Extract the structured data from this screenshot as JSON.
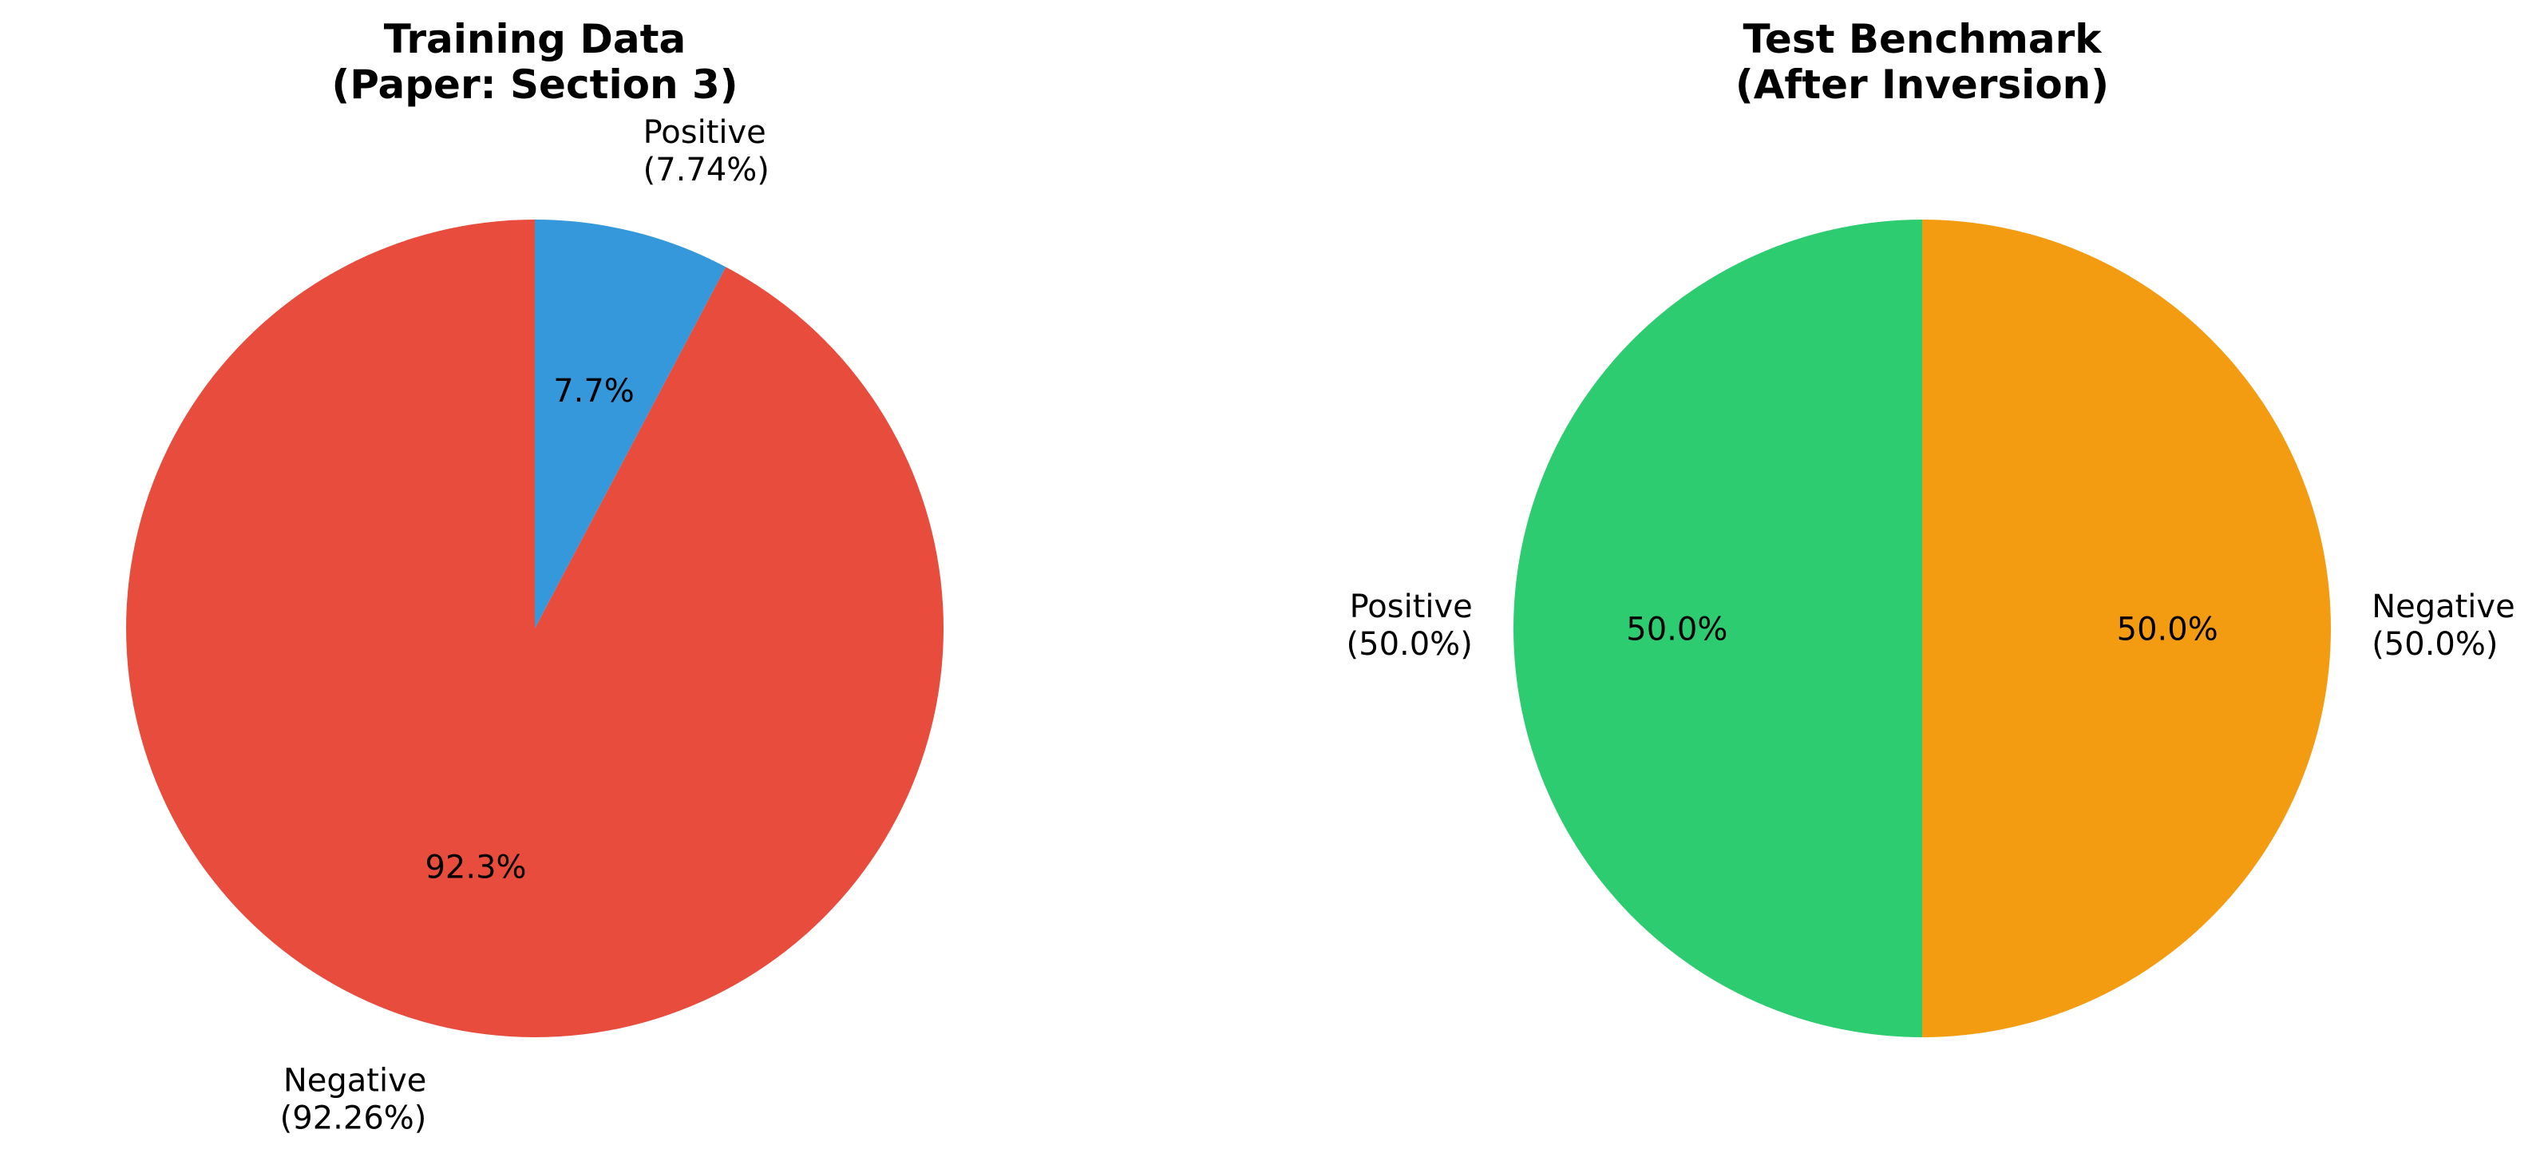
{
  "chart_data": [
    {
      "type": "pie",
      "title_lines": [
        "Training Data",
        "(Paper: Section 3)"
      ],
      "start_angle_deg": 90,
      "direction": "clockwise",
      "slices": [
        {
          "name": "Positive",
          "value": 7.74,
          "color": "#3498db",
          "label_lines": [
            "Positive",
            "(7.74%)"
          ],
          "pct_label": "7.7%"
        },
        {
          "name": "Negative",
          "value": 92.26,
          "color": "#e74c3c",
          "label_lines": [
            "Negative",
            "(92.26%)"
          ],
          "pct_label": "92.3%"
        }
      ]
    },
    {
      "type": "pie",
      "title_lines": [
        "Test Benchmark",
        "(After Inversion)"
      ],
      "start_angle_deg": 90,
      "direction": "counterclockwise",
      "slices": [
        {
          "name": "Positive",
          "value": 50.0,
          "color": "#2ecc71",
          "label_lines": [
            "Positive",
            "(50.0%)"
          ],
          "pct_label": "50.0%"
        },
        {
          "name": "Negative",
          "value": 50.0,
          "color": "#f39c12",
          "label_lines": [
            "Negative",
            "(50.0%)"
          ],
          "pct_label": "50.0%"
        }
      ]
    }
  ]
}
